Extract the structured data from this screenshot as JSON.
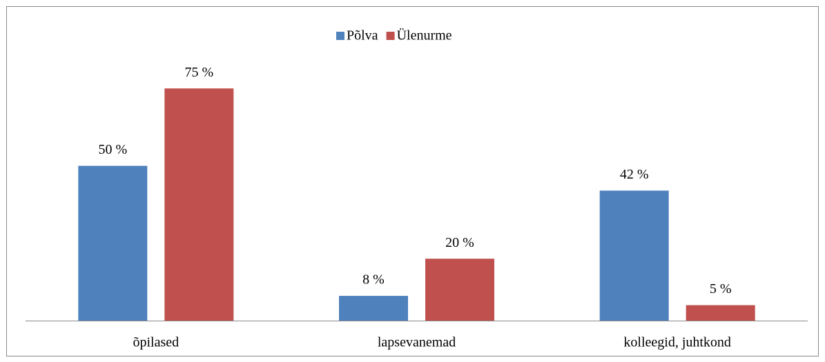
{
  "chart_data": {
    "type": "bar",
    "categories": [
      "õpilased",
      "lapsevanemad",
      "kolleegid, juhtkond"
    ],
    "series": [
      {
        "name": "Põlva",
        "color": "#4f81bd",
        "values": [
          50,
          8,
          42
        ],
        "value_labels": [
          "50 %",
          "8 %",
          "42 %"
        ]
      },
      {
        "name": "Ülenurme",
        "color": "#c0504d",
        "values": [
          75,
          20,
          5
        ],
        "value_labels": [
          "75 %",
          "20 %",
          "5 %"
        ]
      }
    ],
    "legend": "top"
  }
}
